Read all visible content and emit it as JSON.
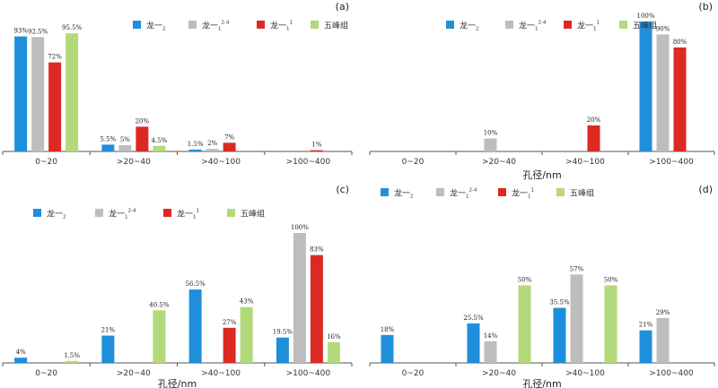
{
  "chart_data": [
    {
      "type": "bar",
      "tag": "(a)",
      "categories": [
        "0~20",
        ">20~40",
        ">40~100",
        ">100~400"
      ],
      "series": [
        {
          "name": "龙一₂",
          "color": "#1f8fdc",
          "values": [
            93,
            5.5,
            1.5,
            null
          ],
          "labels": [
            "93%",
            "5.5%",
            "1.5%",
            ""
          ]
        },
        {
          "name": "龙一₁²⁻⁴",
          "color": "#bdbdbd",
          "values": [
            92.5,
            5,
            2,
            null
          ],
          "labels": [
            "92.5%",
            "5%",
            "2%",
            ""
          ]
        },
        {
          "name": "龙一₁¹",
          "color": "#dc2a22",
          "values": [
            72,
            20,
            7,
            1
          ],
          "labels": [
            "72%",
            "20%",
            "7%",
            "1%"
          ]
        },
        {
          "name": "五峰组",
          "color": "#b3d97a",
          "values": [
            95.5,
            4.5,
            null,
            null
          ],
          "labels": [
            "95.5%",
            "4.5%",
            "",
            ""
          ]
        }
      ],
      "xlabel": "",
      "ylim": [
        0,
        100
      ]
    },
    {
      "type": "bar",
      "tag": "(b)",
      "categories": [
        "0~20",
        ">20~40",
        ">40~100",
        ">100~400"
      ],
      "series": [
        {
          "name": "龙一₂",
          "color": "#1f8fdc",
          "values": [
            null,
            null,
            null,
            100
          ],
          "labels": [
            "",
            "",
            "",
            "100%"
          ]
        },
        {
          "name": "龙一₁²⁻⁴",
          "color": "#bdbdbd",
          "values": [
            null,
            10,
            null,
            90
          ],
          "labels": [
            "",
            "10%",
            "",
            "90%"
          ]
        },
        {
          "name": "龙一₁¹",
          "color": "#dc2a22",
          "values": [
            null,
            null,
            20,
            80
          ],
          "labels": [
            "",
            "",
            "20%",
            "80%"
          ]
        },
        {
          "name": "五峰组",
          "color": "#b3d97a",
          "values": [
            null,
            null,
            null,
            null
          ],
          "labels": [
            "",
            "",
            "",
            ""
          ]
        }
      ],
      "xlabel": "孔径/nm",
      "ylim": [
        0,
        100
      ]
    },
    {
      "type": "bar",
      "tag": "(c)",
      "categories": [
        "0~20",
        ">20~40",
        ">40~100",
        ">100~400"
      ],
      "series": [
        {
          "name": "龙一₂",
          "color": "#1f8fdc",
          "values": [
            4,
            21,
            56.5,
            19.5
          ],
          "labels": [
            "4%",
            "21%",
            "56.5%",
            "19.5%"
          ]
        },
        {
          "name": "龙一₁²⁻⁴",
          "color": "#bdbdbd",
          "values": [
            null,
            null,
            null,
            100
          ],
          "labels": [
            "",
            "",
            "",
            "100%"
          ]
        },
        {
          "name": "龙一₁¹",
          "color": "#dc2a22",
          "values": [
            null,
            null,
            27,
            83
          ],
          "labels": [
            "",
            "",
            "27%",
            "83%"
          ]
        },
        {
          "name": "五峰组",
          "color": "#b3d97a",
          "values": [
            1.5,
            40.5,
            43,
            16
          ],
          "labels": [
            "1.5%",
            "40.5%",
            "43%",
            "16%"
          ]
        }
      ],
      "xlabel": "孔径/nm",
      "ylim": [
        0,
        100
      ]
    },
    {
      "type": "bar",
      "tag": "(d)",
      "categories": [
        "0~20",
        ">20~40",
        ">40~100",
        ">100~400"
      ],
      "series": [
        {
          "name": "龙一₂",
          "color": "#1f8fdc",
          "values": [
            18,
            25.5,
            35.5,
            21
          ],
          "labels": [
            "18%",
            "25.5%",
            "35.5%",
            "21%"
          ]
        },
        {
          "name": "龙一₁²⁻⁴",
          "color": "#bdbdbd",
          "values": [
            null,
            14,
            57,
            29
          ],
          "labels": [
            "",
            "14%",
            "57%",
            "29%"
          ]
        },
        {
          "name": "龙一₁¹",
          "color": "#dc2a22",
          "values": [
            null,
            null,
            null,
            null
          ],
          "labels": [
            "",
            "",
            "",
            ""
          ]
        },
        {
          "name": "五峰组",
          "color": "#b3d97a",
          "values": [
            null,
            50,
            50,
            null
          ],
          "labels": [
            "",
            "50%",
            "50%",
            ""
          ]
        }
      ],
      "xlabel": "孔径/nm",
      "ylim": [
        0,
        100
      ]
    }
  ]
}
